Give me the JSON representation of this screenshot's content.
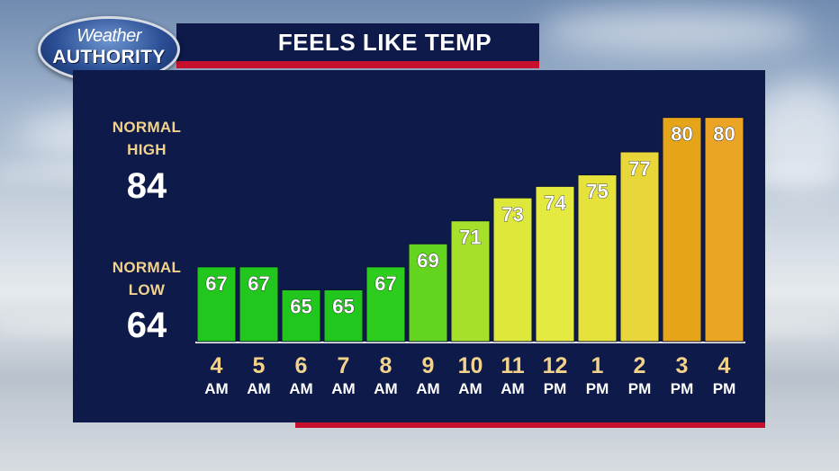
{
  "header": {
    "title": "FEELS LIKE TEMP"
  },
  "logo": {
    "line1": "Weather",
    "line2": "AUTHORITY"
  },
  "normals": {
    "high_label_1": "NORMAL",
    "high_label_2": "HIGH",
    "high_value": "84",
    "low_label_1": "NORMAL",
    "low_label_2": "LOW",
    "low_value": "64"
  },
  "colors": {
    "panel": "#0d1a4a",
    "accent_red": "#c8102e",
    "label_gold": "#f3d38b"
  },
  "chart_data": {
    "type": "bar",
    "title": "FEELS LIKE TEMP",
    "categories": [
      {
        "hour": "4",
        "ampm": "AM"
      },
      {
        "hour": "5",
        "ampm": "AM"
      },
      {
        "hour": "6",
        "ampm": "AM"
      },
      {
        "hour": "7",
        "ampm": "AM"
      },
      {
        "hour": "8",
        "ampm": "AM"
      },
      {
        "hour": "9",
        "ampm": "AM"
      },
      {
        "hour": "10",
        "ampm": "AM"
      },
      {
        "hour": "11",
        "ampm": "AM"
      },
      {
        "hour": "12",
        "ampm": "PM"
      },
      {
        "hour": "1",
        "ampm": "PM"
      },
      {
        "hour": "2",
        "ampm": "PM"
      },
      {
        "hour": "3",
        "ampm": "PM"
      },
      {
        "hour": "4",
        "ampm": "PM"
      }
    ],
    "values": [
      67,
      67,
      65,
      65,
      67,
      69,
      71,
      73,
      74,
      75,
      77,
      80,
      80
    ],
    "bar_colors": [
      "#22c71e",
      "#22c71e",
      "#22c71e",
      "#22c71e",
      "#2ccd1c",
      "#63d51e",
      "#a6e02a",
      "#dde83a",
      "#e4ea40",
      "#e6e23c",
      "#e8d63a",
      "#e6a418",
      "#eba424"
    ],
    "ylim": [
      60.5,
      81.3
    ],
    "grid": false,
    "legend": "none"
  }
}
